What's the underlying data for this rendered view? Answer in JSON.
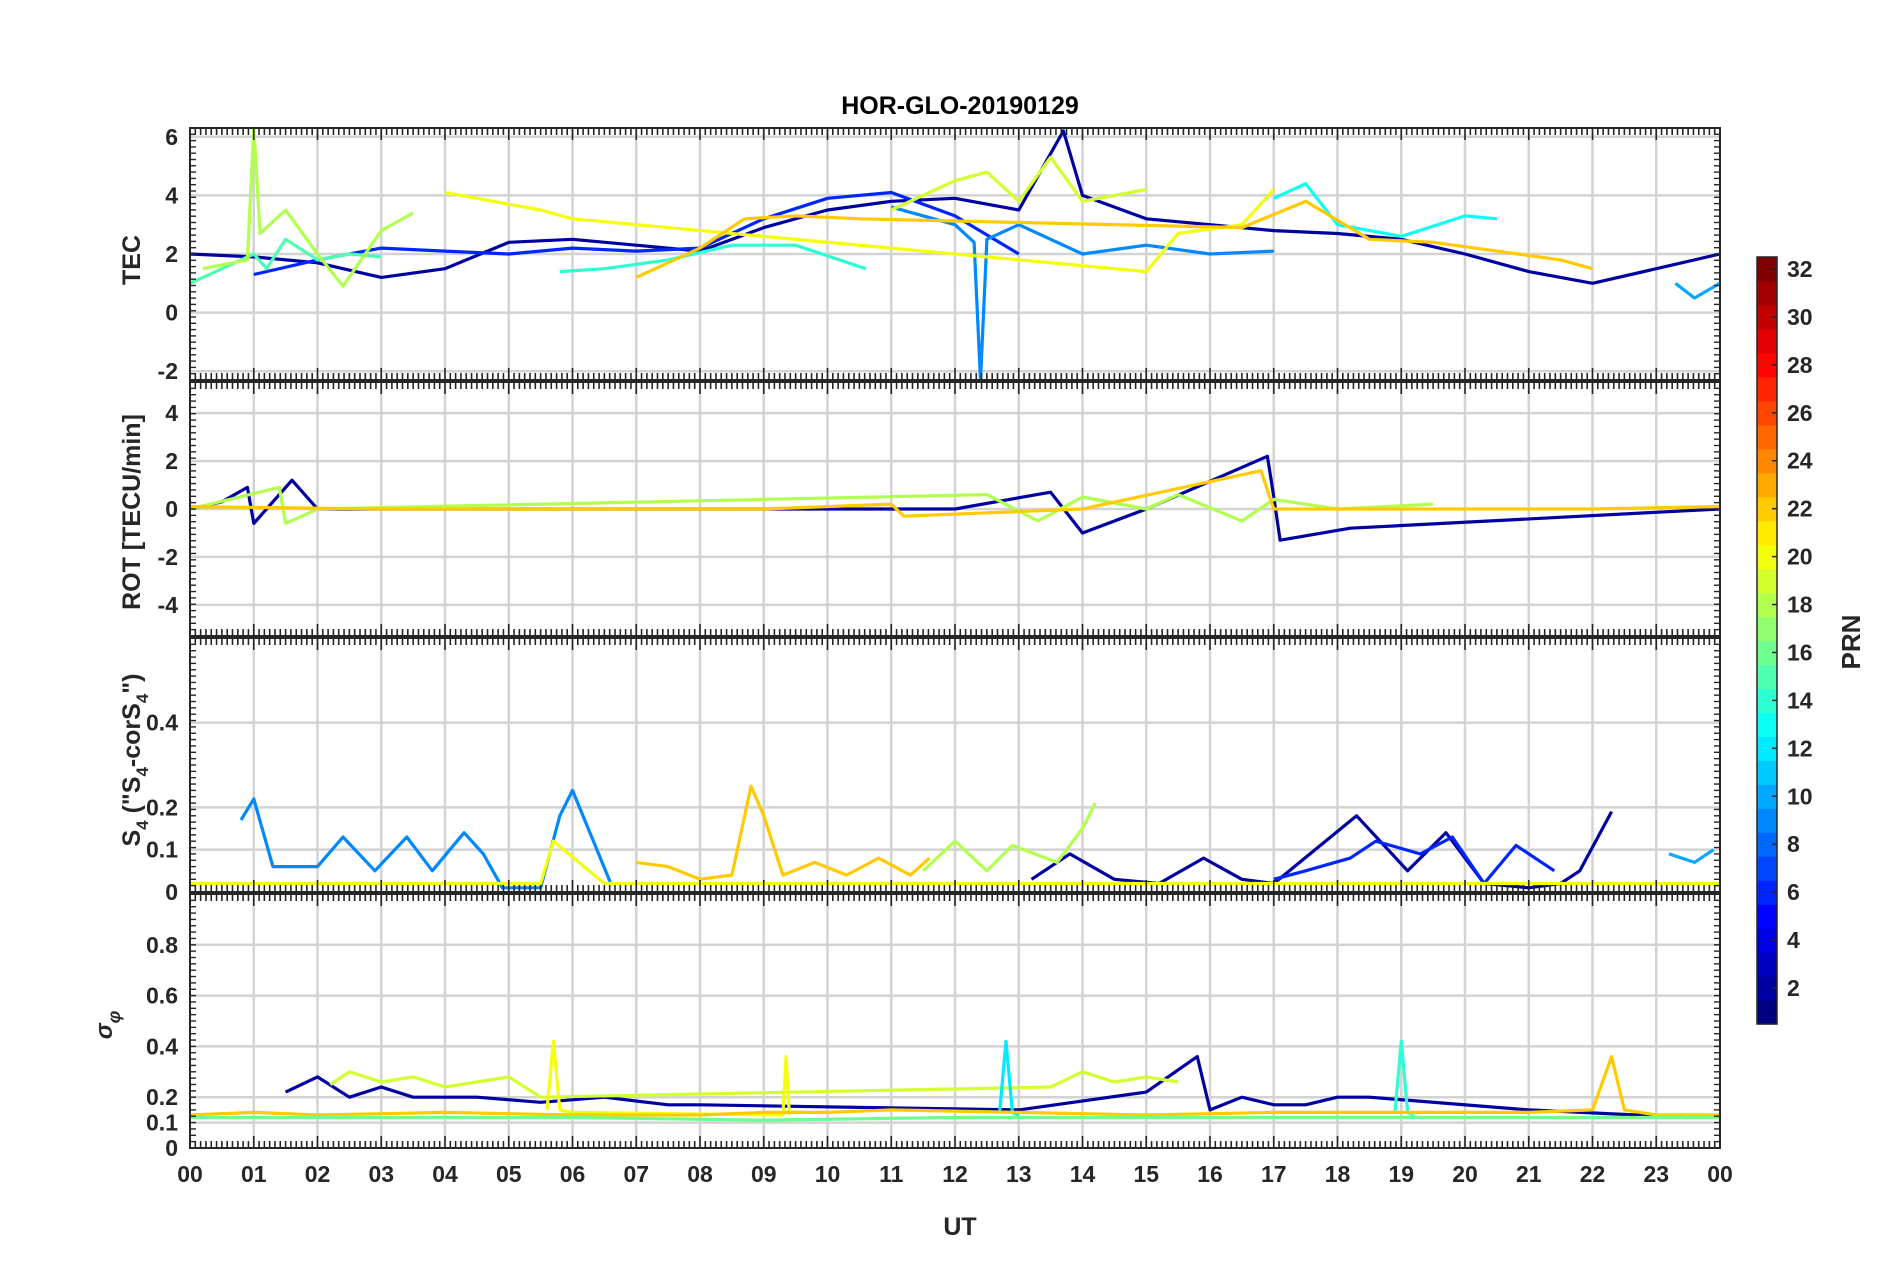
{
  "chart_data": {
    "type": "line",
    "title": "HOR-GLO-20190129",
    "xlabel": "UT",
    "x_ticks": [
      "00",
      "01",
      "02",
      "03",
      "04",
      "05",
      "06",
      "07",
      "08",
      "09",
      "10",
      "11",
      "12",
      "13",
      "14",
      "15",
      "16",
      "17",
      "18",
      "19",
      "20",
      "21",
      "22",
      "23",
      "00"
    ],
    "xlim": [
      0,
      24
    ],
    "grid": true,
    "colorbar": {
      "label": "PRN",
      "range": [
        1,
        32
      ],
      "ticks": [
        "2",
        "4",
        "6",
        "8",
        "10",
        "12",
        "14",
        "16",
        "18",
        "20",
        "22",
        "24",
        "26",
        "28",
        "30",
        "32"
      ],
      "colormap": "jet"
    },
    "panels": [
      {
        "ylabel": "TEC",
        "ylim": [
          -2.3,
          6.3
        ],
        "y_ticks": [
          -2,
          0,
          2,
          4,
          6
        ],
        "y_tick_labels": [
          "-2",
          "0",
          "2",
          "4",
          "6"
        ],
        "series": [
          {
            "prn": 2,
            "x": [
              0,
              1,
              2,
              3,
              4,
              5,
              6,
              7,
              8,
              9,
              10,
              11,
              12,
              13,
              13.7,
              14,
              15,
              16,
              17,
              18,
              19,
              20,
              21,
              22,
              23,
              24
            ],
            "y": [
              2.0,
              1.9,
              1.7,
              1.2,
              1.5,
              2.4,
              2.5,
              2.3,
              2.1,
              2.9,
              3.5,
              3.8,
              3.9,
              3.5,
              6.2,
              4.0,
              3.2,
              3.0,
              2.8,
              2.7,
              2.5,
              2.0,
              1.4,
              1.0,
              1.5,
              2.0
            ]
          },
          {
            "prn": 6,
            "x": [
              1,
              2,
              3,
              4,
              5,
              6,
              7,
              8,
              9,
              10,
              11,
              12,
              13
            ],
            "y": [
              1.3,
              1.8,
              2.2,
              2.1,
              2.0,
              2.2,
              2.1,
              2.2,
              3.2,
              3.9,
              4.1,
              3.3,
              2.0
            ]
          },
          {
            "prn": 9,
            "x": [
              11,
              12,
              12.3,
              12.4,
              12.5,
              13,
              14,
              15,
              16,
              17
            ],
            "y": [
              3.6,
              3.0,
              2.4,
              -2.3,
              2.5,
              3.0,
              2.0,
              2.3,
              2.0,
              2.1
            ]
          },
          {
            "prn": 10,
            "x": [
              23.3,
              23.6,
              24
            ],
            "y": [
              1.0,
              0.5,
              1.0
            ]
          },
          {
            "prn": 13,
            "x": [
              17,
              17.5,
              18,
              19,
              20,
              20.5
            ],
            "y": [
              3.9,
              4.4,
              3.0,
              2.6,
              3.3,
              3.2
            ]
          },
          {
            "prn": 14,
            "x": [
              5.8,
              6.5,
              7.5,
              8.5,
              9.5,
              10.6
            ],
            "y": [
              1.4,
              1.5,
              1.8,
              2.3,
              2.3,
              1.5
            ]
          },
          {
            "prn": 15,
            "x": [
              0,
              0.5,
              1.0,
              1.2,
              1.5,
              2.0,
              2.5,
              3.0
            ],
            "y": [
              1.0,
              1.5,
              2.0,
              1.5,
              2.5,
              1.8,
              2.0,
              1.9
            ]
          },
          {
            "prn": 18,
            "x": [
              0.2,
              0.9,
              1.0,
              1.1,
              1.5,
              2.0,
              2.4,
              3.0,
              3.5
            ],
            "y": [
              1.5,
              1.8,
              6.3,
              2.7,
              3.5,
              2.0,
              0.9,
              2.8,
              3.4
            ]
          },
          {
            "prn": 19,
            "x": [
              11,
              12,
              12.5,
              13,
              13.5,
              14,
              14.5,
              15
            ],
            "y": [
              3.5,
              4.5,
              4.8,
              3.8,
              5.3,
              3.8,
              4.0,
              4.2
            ]
          },
          {
            "prn": 20,
            "x": [
              4.0,
              5.0,
              5.5,
              6.0,
              15.0,
              15.5,
              16.5,
              17.0
            ],
            "y": [
              4.1,
              3.7,
              3.5,
              3.2,
              1.4,
              2.7,
              3.0,
              4.2
            ]
          },
          {
            "prn": 22,
            "x": [
              7.0,
              8.0,
              8.7,
              9.5,
              10.5,
              16.5,
              17.5,
              18.5,
              19.5,
              20.5,
              21.5,
              22.0
            ],
            "y": [
              1.2,
              2.2,
              3.2,
              3.3,
              3.2,
              2.9,
              3.8,
              2.5,
              2.4,
              2.1,
              1.8,
              1.5
            ]
          }
        ]
      },
      {
        "ylabel": "ROT [TECU/min]",
        "ylim": [
          -5.3,
          5.3
        ],
        "y_ticks": [
          -4,
          -2,
          0,
          2,
          4
        ],
        "y_tick_labels": [
          "-4",
          "-2",
          "0",
          "2",
          "4"
        ],
        "series": [
          {
            "prn": 2,
            "x": [
              0,
              0.5,
              0.9,
              1.0,
              1.6,
              2.0,
              12,
              13.5,
              14.0,
              15,
              16.9,
              17.0,
              17.1,
              18.2,
              24
            ],
            "y": [
              0,
              0.3,
              0.9,
              -0.6,
              1.2,
              0,
              0,
              0.7,
              -1.0,
              0,
              2.2,
              0.5,
              -1.3,
              -0.8,
              0
            ]
          },
          {
            "prn": 18,
            "x": [
              0,
              1.4,
              1.5,
              2.0,
              12.5,
              13.3,
              14.0,
              15,
              15.5,
              16.5,
              17,
              18,
              19.5
            ],
            "y": [
              0,
              0.9,
              -0.6,
              0,
              0.6,
              -0.5,
              0.5,
              0,
              0.6,
              -0.5,
              0.4,
              0,
              0.2
            ]
          },
          {
            "prn": 22,
            "x": [
              0,
              3,
              6,
              9,
              11,
              11.2,
              14,
              16.8,
              17,
              19,
              22,
              24
            ],
            "y": [
              0.1,
              0,
              0,
              0,
              0.2,
              -0.3,
              0,
              1.6,
              0,
              0,
              0,
              0.1
            ]
          }
        ]
      },
      {
        "ylabel": "S4 (\"S4-corS4\")",
        "ylim": [
          0,
          0.6
        ],
        "y_ticks": [
          0,
          0.1,
          0.2,
          0.4
        ],
        "y_tick_labels": [
          "0",
          "0.1",
          "0.2",
          "0.4"
        ],
        "series": [
          {
            "prn": 2,
            "x": [
              13.2,
              13.8,
              14.5,
              15.2,
              15.9,
              16.5,
              17.0,
              18.3,
              19.1,
              19.7,
              20.3,
              21.0,
              21.5,
              21.8,
              22.3
            ],
            "y": [
              0.03,
              0.09,
              0.03,
              0.02,
              0.08,
              0.03,
              0.02,
              0.18,
              0.05,
              0.14,
              0.02,
              0.01,
              0.02,
              0.05,
              0.19
            ]
          },
          {
            "prn": 6,
            "x": [
              17.0,
              17.5,
              18.2,
              18.6,
              19.3,
              19.8,
              20.3,
              20.8,
              21.4
            ],
            "y": [
              0.03,
              0.05,
              0.08,
              0.12,
              0.09,
              0.13,
              0.02,
              0.11,
              0.05
            ]
          },
          {
            "prn": 9,
            "x": [
              0.8,
              1.0,
              1.3,
              2.0,
              2.4,
              2.9,
              3.4,
              3.8,
              4.3,
              4.6,
              4.9,
              5.5,
              5.8,
              6.0,
              6.6
            ],
            "y": [
              0.17,
              0.22,
              0.06,
              0.06,
              0.13,
              0.05,
              0.13,
              0.05,
              0.14,
              0.09,
              0.01,
              0.01,
              0.18,
              0.24,
              0.02
            ]
          },
          {
            "prn": 10,
            "x": [
              23.2,
              23.6,
              23.9
            ],
            "y": [
              0.09,
              0.07,
              0.1
            ]
          },
          {
            "prn": 18,
            "x": [
              11.5,
              12.0,
              12.5,
              12.9,
              13.6,
              14.0,
              14.2
            ],
            "y": [
              0.05,
              0.12,
              0.05,
              0.11,
              0.07,
              0.15,
              0.21
            ]
          },
          {
            "prn": 22,
            "x": [
              7.0,
              7.5,
              8.0,
              8.5,
              8.8,
              9.0,
              9.3,
              9.8,
              10.3,
              10.8,
              11.3,
              11.6
            ],
            "y": [
              0.07,
              0.06,
              0.03,
              0.04,
              0.25,
              0.18,
              0.04,
              0.07,
              0.04,
              0.08,
              0.04,
              0.08
            ]
          },
          {
            "prn": 20,
            "x": [
              0,
              3,
              5.5,
              5.7,
              6.5,
              9,
              12,
              15,
              18,
              21,
              24
            ],
            "y": [
              0.02,
              0.02,
              0.02,
              0.12,
              0.02,
              0.02,
              0.02,
              0.02,
              0.02,
              0.02,
              0.02
            ]
          }
        ]
      },
      {
        "ylabel": "σφ",
        "ylim": [
          0,
          1.0
        ],
        "y_ticks": [
          0,
          0.1,
          0.2,
          0.4,
          0.6,
          0.8
        ],
        "y_tick_labels": [
          "0",
          "0.1",
          "0.2",
          "0.4",
          "0.6",
          "0.8"
        ],
        "series": [
          {
            "prn": 2,
            "x": [
              1.5,
              2.0,
              2.5,
              3.0,
              3.5,
              4.5,
              5.5,
              6.5,
              7.5,
              8.0,
              13.0,
              15.0,
              15.8,
              16.0,
              16.5,
              17.0,
              17.5,
              18.0,
              18.5,
              21.0,
              23.5,
              24
            ],
            "y": [
              0.22,
              0.28,
              0.2,
              0.24,
              0.2,
              0.2,
              0.18,
              0.2,
              0.17,
              0.17,
              0.15,
              0.22,
              0.36,
              0.15,
              0.2,
              0.17,
              0.17,
              0.2,
              0.2,
              0.15,
              0.12,
              0.13
            ]
          },
          {
            "prn": 19,
            "x": [
              2.2,
              2.5,
              3.0,
              3.5,
              4.0,
              4.5,
              5.0,
              5.5,
              13.5,
              14.0,
              14.5,
              15.0,
              15.5
            ],
            "y": [
              0.25,
              0.3,
              0.26,
              0.28,
              0.24,
              0.26,
              0.28,
              0.2,
              0.24,
              0.3,
              0.26,
              0.28,
              0.26
            ]
          },
          {
            "prn": 20,
            "x": [
              5.6,
              5.7,
              5.8,
              6.0,
              9.3,
              9.35,
              9.4
            ],
            "y": [
              0.15,
              0.42,
              0.15,
              0.14,
              0.13,
              0.36,
              0.13
            ]
          },
          {
            "prn": 12,
            "x": [
              12.7,
              12.8,
              12.9,
              13.0
            ],
            "y": [
              0.14,
              0.42,
              0.14,
              0.13
            ]
          },
          {
            "prn": 14,
            "x": [
              18.9,
              19.0,
              19.1,
              19.2
            ],
            "y": [
              0.14,
              0.42,
              0.14,
              0.13
            ]
          },
          {
            "prn": 22,
            "x": [
              0,
              1,
              2,
              4,
              6,
              8,
              9,
              10,
              11,
              13,
              15,
              17,
              19,
              21,
              22,
              22.3,
              22.5,
              23,
              24
            ],
            "y": [
              0.13,
              0.14,
              0.13,
              0.14,
              0.13,
              0.13,
              0.14,
              0.14,
              0.15,
              0.14,
              0.13,
              0.14,
              0.14,
              0.14,
              0.15,
              0.36,
              0.15,
              0.13,
              0.13
            ]
          },
          {
            "prn": 16,
            "x": [
              0,
              3,
              6,
              9,
              12,
              15,
              18,
              21,
              24
            ],
            "y": [
              0.12,
              0.12,
              0.12,
              0.11,
              0.12,
              0.12,
              0.12,
              0.12,
              0.12
            ]
          }
        ]
      }
    ]
  }
}
